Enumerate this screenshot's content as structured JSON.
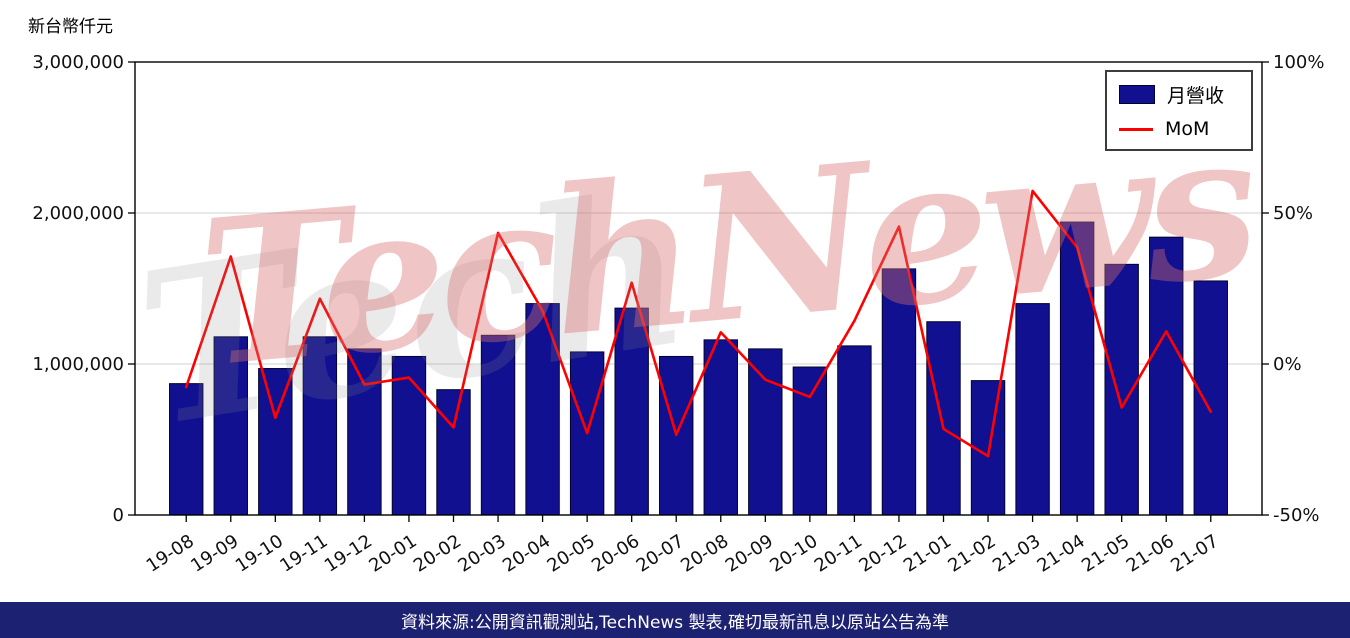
{
  "colors": {
    "bar": "#101090",
    "bar_edge": "#03032d",
    "line": "#ff0000",
    "grid": "#d9d9d9",
    "axis": "#000000",
    "footer_bg": "#1d2172",
    "watermark": "#d87070"
  },
  "watermark": {
    "text": "TechNews",
    "echo": "Tech"
  },
  "footer": {
    "text": "資料來源:公開資訊觀測站,TechNews 製表,確切最新訊息以原站公告為準"
  },
  "chart_data": {
    "type": "bar+line",
    "title": "",
    "categories": [
      "19-08",
      "19-09",
      "19-10",
      "19-11",
      "19-12",
      "20-01",
      "20-02",
      "20-03",
      "20-04",
      "20-05",
      "20-06",
      "20-07",
      "20-08",
      "20-09",
      "20-10",
      "20-11",
      "20-12",
      "21-01",
      "21-02",
      "21-03",
      "21-04",
      "21-05",
      "21-06",
      "21-07"
    ],
    "series": [
      {
        "name": "月營收",
        "type": "bar",
        "axis": "left",
        "values": [
          870000,
          1180000,
          970000,
          1180000,
          1100000,
          1050000,
          830000,
          1190000,
          1400000,
          1080000,
          1370000,
          1050000,
          1160000,
          1100000,
          980000,
          1120000,
          1630000,
          1280000,
          890000,
          1400000,
          1940000,
          1660000,
          1840000,
          1550000
        ]
      },
      {
        "name": "MoM",
        "type": "line",
        "axis": "right",
        "values": [
          -7.6,
          35.6,
          -17.8,
          21.6,
          -6.8,
          -4.5,
          -21.0,
          43.4,
          17.6,
          -22.9,
          26.9,
          -23.4,
          10.5,
          -5.2,
          -10.9,
          14.3,
          45.5,
          -21.5,
          -30.5,
          57.3,
          38.6,
          -14.4,
          10.8,
          -15.8
        ]
      }
    ],
    "left_axis": {
      "label": "新台幣仟元",
      "range": [
        0,
        3000000
      ],
      "ticks": [
        0,
        1000000,
        2000000,
        3000000
      ],
      "tick_labels": [
        "0",
        "1,000,000",
        "2,000,000",
        "3,000,000"
      ]
    },
    "right_axis": {
      "range": [
        -50,
        100
      ],
      "ticks": [
        -50,
        0,
        50,
        100
      ],
      "tick_labels": [
        "-50%",
        "0%",
        "50%",
        "100%"
      ]
    },
    "grid": true,
    "legend_position": "upper right"
  }
}
